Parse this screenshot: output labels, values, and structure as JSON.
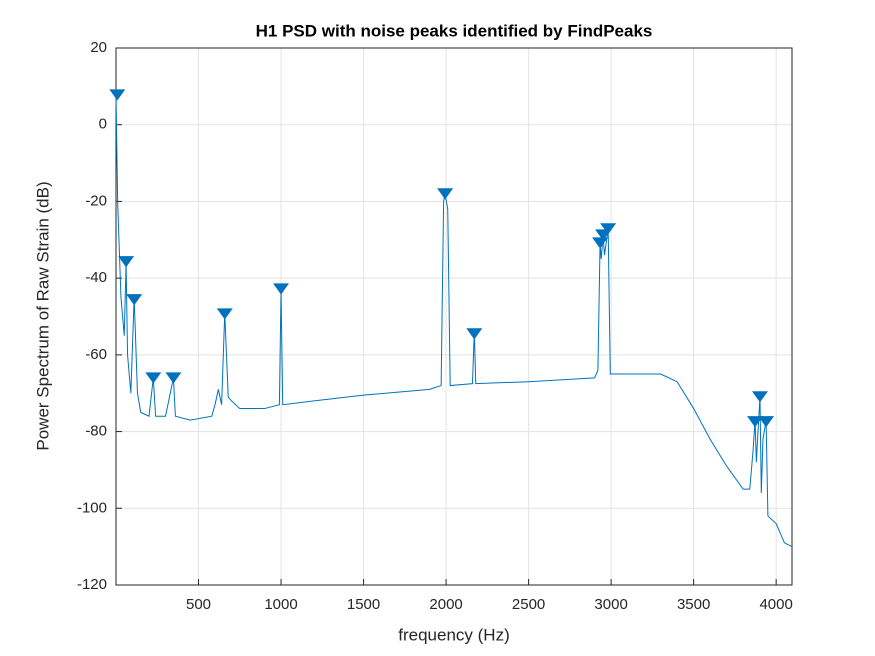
{
  "chart_data": {
    "type": "line",
    "title": "H1 PSD with noise peaks identified by FindPeaks",
    "xlabel": "frequency (Hz)",
    "ylabel": "Power Spectrum of Raw Strain (dB)",
    "xlim": [
      0,
      4096
    ],
    "ylim": [
      -120,
      20
    ],
    "xticks": [
      500,
      1000,
      1500,
      2000,
      2500,
      3000,
      3500,
      4000
    ],
    "yticks": [
      -120,
      -100,
      -80,
      -60,
      -40,
      -20,
      0,
      20
    ],
    "grid": true,
    "series": [
      {
        "color": "#0072bd",
        "marker": "none",
        "x": [
          0,
          10,
          30,
          50,
          61,
          70,
          90,
          110,
          130,
          150,
          200,
          226,
          240,
          300,
          348,
          360,
          450,
          580,
          600,
          620,
          640,
          659,
          680,
          700,
          750,
          900,
          990,
          1000,
          1010,
          1200,
          1500,
          1900,
          1970,
          1985,
          1994,
          2010,
          2025,
          2160,
          2171,
          2180,
          2500,
          2900,
          2920,
          2933,
          2940,
          2951,
          2960,
          2982,
          2995,
          3300,
          3400,
          3500,
          3600,
          3700,
          3800,
          3840,
          3860,
          3872,
          3880,
          3890,
          3902,
          3910,
          3920,
          3939,
          3950,
          4000,
          4050,
          4096
        ],
        "values": [
          8,
          -20,
          -45,
          -55,
          -36,
          -60,
          -70,
          -45,
          -70,
          -75,
          -76,
          -66,
          -76,
          -76,
          -66,
          -76,
          -77,
          -76,
          -73,
          -69,
          -73,
          -49,
          -71,
          -72,
          -74,
          -74,
          -73,
          -43,
          -73,
          -72,
          -70.5,
          -69,
          -68,
          -20,
          -18,
          -22,
          -68,
          -67.5,
          -54,
          -67.5,
          -67,
          -66,
          -64,
          -31,
          -35,
          -29,
          -34,
          -27,
          -65,
          -65,
          -67,
          -74,
          -82,
          -89,
          -95,
          -95,
          -85,
          -77,
          -88,
          -80,
          -71,
          -96,
          -82,
          -77,
          -102,
          -104,
          -109,
          -110
        ]
      },
      {
        "color": "#0072bd",
        "marker": "triangle-down",
        "x": [
          8,
          61,
          110,
          226,
          348,
          659,
          1000,
          1994,
          2171,
          2933,
          2951,
          2982,
          3872,
          3902,
          3939
        ],
        "values": [
          8,
          -35.5,
          -45.4,
          -65.8,
          -65.8,
          -49.1,
          -42.6,
          -17.8,
          -54.3,
          -30.6,
          -28.5,
          -26.9,
          -77.2,
          -70.7,
          -77.2
        ]
      }
    ]
  }
}
